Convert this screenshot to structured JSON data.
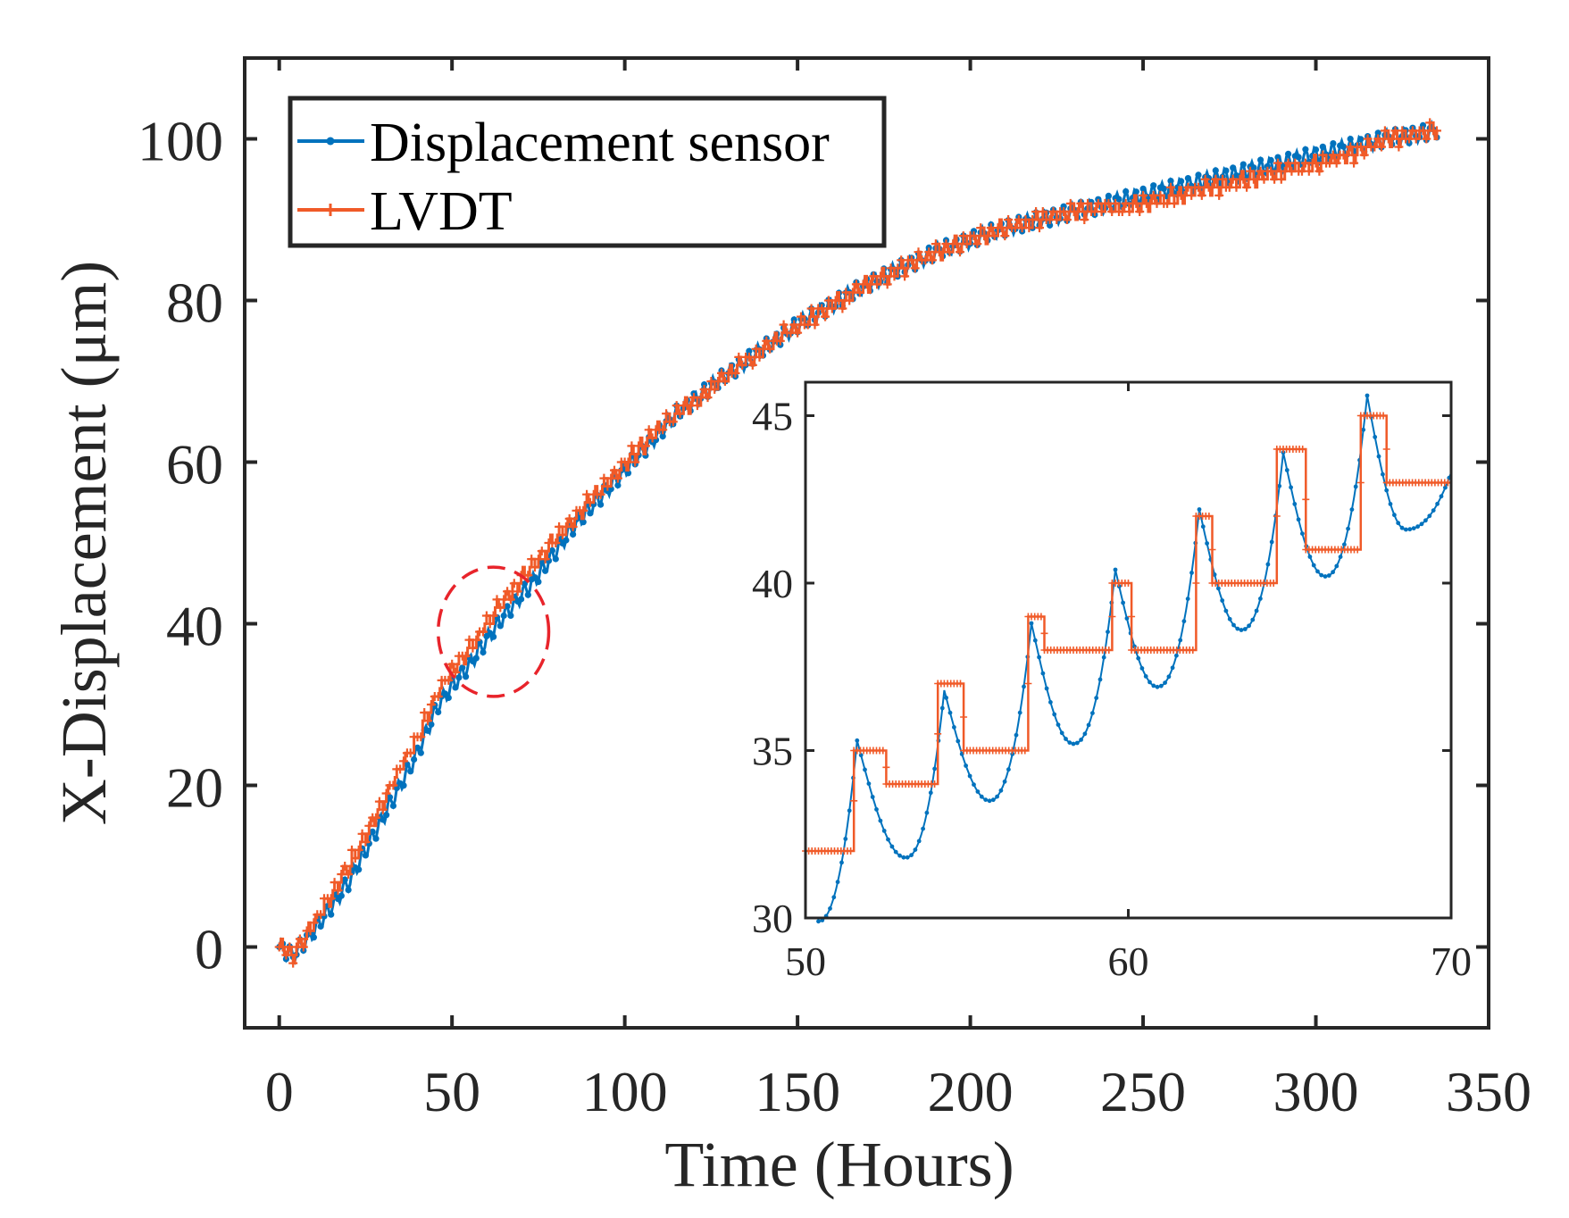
{
  "colors": {
    "sensor": "#0072BD",
    "lvdt": "#F05A28",
    "axis": "#262626",
    "highlight": "#E8242B"
  },
  "chart_data": [
    {
      "type": "line",
      "xlabel": "Time (Hours)",
      "ylabel": "X-Displacement (μm)",
      "xlim": [
        -10,
        350
      ],
      "ylim": [
        -10,
        110
      ],
      "xticks": [
        0,
        50,
        100,
        150,
        200,
        250,
        300,
        350
      ],
      "yticks": [
        0,
        20,
        40,
        60,
        80,
        100
      ],
      "grid": false,
      "legend": {
        "placement": "top-left",
        "entries": [
          "Displacement sensor",
          "LVDT"
        ]
      },
      "annotation": {
        "type": "dashed-ellipse",
        "center": [
          62,
          39
        ],
        "rx_hours": 16,
        "ry_um": 8
      },
      "series": [
        {
          "name": "Displacement sensor",
          "x": [
            0,
            4,
            10,
            20,
            30,
            40,
            46,
            55,
            65,
            75,
            85,
            100,
            115,
            130,
            150,
            170,
            190,
            210,
            230,
            250,
            270,
            290,
            310,
            320,
            335
          ],
          "y": [
            0,
            -1,
            2,
            8,
            16,
            24,
            30,
            35,
            41,
            46,
            52,
            59,
            66,
            71,
            77,
            82,
            86,
            89,
            91,
            93,
            95,
            97,
            99,
            100,
            101
          ]
        },
        {
          "name": "LVDT",
          "x": [
            0,
            4,
            10,
            20,
            30,
            40,
            46,
            55,
            65,
            75,
            85,
            100,
            115,
            130,
            150,
            170,
            190,
            210,
            230,
            250,
            270,
            290,
            310,
            320,
            335
          ],
          "y": [
            0,
            -1,
            3,
            10,
            18,
            26,
            32,
            37,
            43,
            48,
            53,
            60,
            66,
            71,
            77,
            82,
            86,
            89,
            91,
            92,
            94,
            96,
            98,
            100,
            101
          ]
        }
      ]
    },
    {
      "type": "line",
      "placement": "inset",
      "xlim": [
        50,
        70
      ],
      "ylim": [
        30,
        46
      ],
      "xticks": [
        50,
        60,
        70
      ],
      "yticks": [
        30,
        35,
        40,
        45
      ],
      "series": [
        {
          "name": "Displacement sensor",
          "peaks": [
            [
              51.6,
              35.3
            ],
            [
              54.3,
              36.8
            ],
            [
              57.0,
              38.8
            ],
            [
              59.6,
              40.4
            ],
            [
              62.2,
              42.2
            ],
            [
              64.8,
              43.9
            ],
            [
              67.4,
              45.6
            ]
          ],
          "troughs": [
            [
              50.4,
              29.9
            ],
            [
              53.1,
              31.8
            ],
            [
              55.7,
              33.5
            ],
            [
              58.3,
              35.2
            ],
            [
              60.9,
              36.9
            ],
            [
              63.5,
              38.6
            ],
            [
              66.1,
              40.2
            ],
            [
              68.6,
              41.6
            ]
          ],
          "end": [
            70,
            43.3
          ]
        },
        {
          "name": "LVDT",
          "steps": [
            [
              50,
              32
            ],
            [
              51.5,
              35
            ],
            [
              52.5,
              34
            ],
            [
              54.1,
              37
            ],
            [
              54.9,
              35
            ],
            [
              56.9,
              39
            ],
            [
              57.4,
              38
            ],
            [
              59.5,
              40
            ],
            [
              60.1,
              38
            ],
            [
              62.1,
              42
            ],
            [
              62.6,
              40
            ],
            [
              64.6,
              44
            ],
            [
              65.5,
              41
            ],
            [
              67.2,
              45
            ],
            [
              68.0,
              43
            ]
          ],
          "end": 70
        }
      ]
    }
  ]
}
